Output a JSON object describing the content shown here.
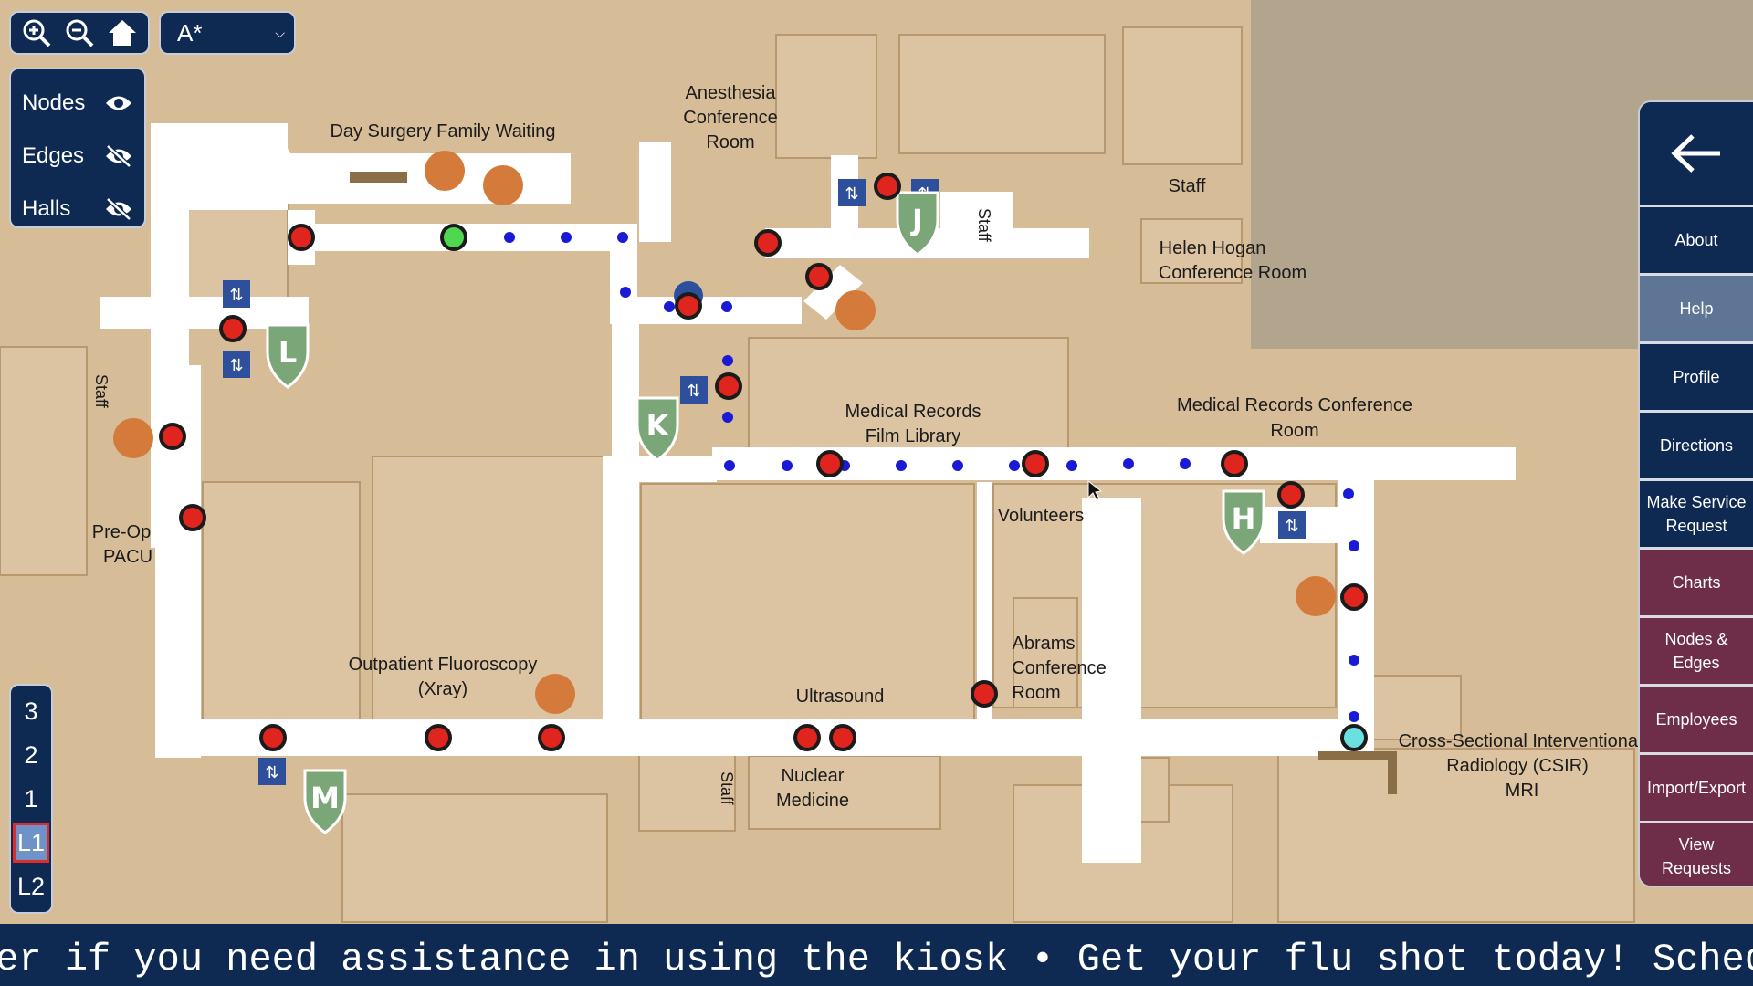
{
  "map": {
    "labels": {
      "day_surgery": "Day Surgery Family Waiting",
      "anesthesia_1": "Anesthesia",
      "anesthesia_2": "Conference",
      "anesthesia_3": "Room",
      "staff": "Staff",
      "helen_1": "Helen Hogan",
      "helen_2": "Conference Room",
      "med_records_1": "Medical Records",
      "med_records_2": "Film Library",
      "mrc_1": "Medical Records Conference",
      "mrc_2": "Room",
      "volunteers": "Volunteers",
      "preop_1": "Pre-Op",
      "preop_2": "PACU",
      "fluoro_1": "Outpatient Fluoroscopy",
      "fluoro_2": "(Xray)",
      "ultrasound": "Ultrasound",
      "abrams_1": "Abrams",
      "abrams_2": "Conference",
      "abrams_3": "Room",
      "nuclear_1": "Nuclear",
      "nuclear_2": "Medicine",
      "csir_1": "Cross-Sectional Interventional",
      "csir_2": "Radiology (CSIR)",
      "csir_3": "MRI"
    },
    "elevators": {
      "J": "J",
      "L": "L",
      "K": "K",
      "H": "H",
      "M": "M"
    }
  },
  "toolbar": {
    "zoom_in_icon": "zoom-in-icon",
    "zoom_out_icon": "zoom-out-icon",
    "home_icon": "home-icon",
    "algorithm": "A*"
  },
  "toggles": [
    {
      "label": "Nodes",
      "visible": true
    },
    {
      "label": "Edges",
      "visible": false
    },
    {
      "label": "Halls",
      "visible": false
    }
  ],
  "floors": [
    {
      "label": "3",
      "active": false
    },
    {
      "label": "2",
      "active": false
    },
    {
      "label": "1",
      "active": false
    },
    {
      "label": "L1",
      "active": true
    },
    {
      "label": "L2",
      "active": false
    }
  ],
  "sidebar": {
    "items": [
      {
        "label": "About",
        "color": "#0f2a52"
      },
      {
        "label": "Help",
        "color": "#5f7595"
      },
      {
        "label": "Profile",
        "color": "#0f2a52"
      },
      {
        "label": "Directions",
        "color": "#0f2a52"
      },
      {
        "label": "Make Service\nRequest",
        "color": "#0f2a52"
      },
      {
        "label": "Charts",
        "color": "#6e2e4a"
      },
      {
        "label": "Nodes &\nEdges",
        "color": "#6e2e4a"
      },
      {
        "label": "Employees",
        "color": "#6e2e4a"
      },
      {
        "label": "Import/Export",
        "color": "#6e2e4a"
      },
      {
        "label": "View Requests",
        "color": "#6e2e4a"
      }
    ]
  },
  "ticker": {
    "text": "per if you need assistance in using the kiosk • Get your flu shot today! Schedule"
  },
  "colors": {
    "panel": "#0f2a52",
    "admin": "#6e2e4a",
    "help_active": "#5f7595",
    "map_bg": "#d7bc98",
    "node": "#e0251f",
    "edge_dot": "#1a1ad6",
    "elevator_shield": "#7aa678"
  }
}
